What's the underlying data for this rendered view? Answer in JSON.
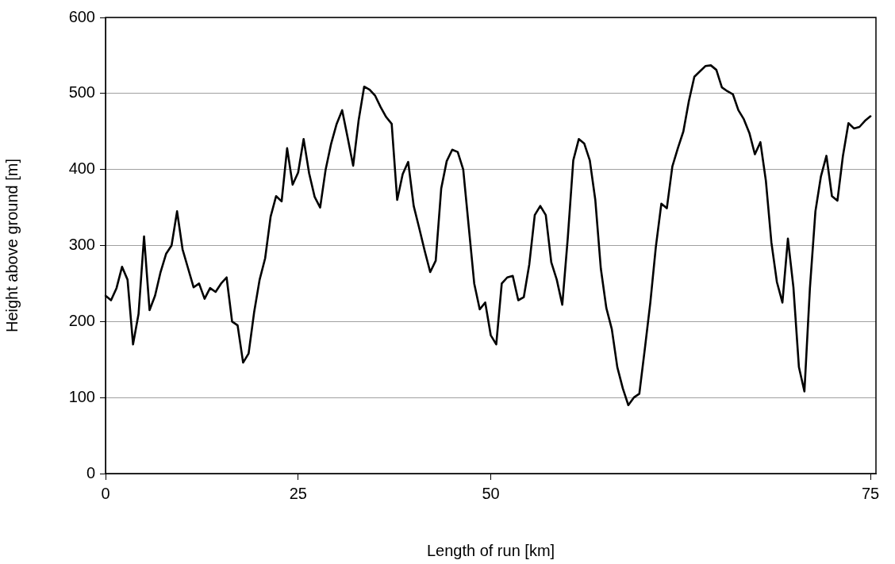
{
  "chart_data": {
    "type": "line",
    "xlabel": "Length of run [km]",
    "ylabel": "Height above ground [m]",
    "categories": [
      "0",
      null,
      null,
      null,
      null,
      null,
      null,
      null,
      null,
      null,
      null,
      null,
      null,
      null,
      null,
      null,
      null,
      null,
      null,
      null,
      null,
      null,
      null,
      null,
      null,
      null,
      null,
      null,
      null,
      null,
      null,
      null,
      null,
      null,
      null,
      "25",
      null,
      null,
      null,
      null,
      null,
      null,
      null,
      null,
      null,
      null,
      null,
      null,
      null,
      null,
      null,
      null,
      null,
      null,
      null,
      null,
      null,
      null,
      null,
      null,
      null,
      null,
      null,
      null,
      null,
      null,
      null,
      null,
      null,
      null,
      "50",
      null,
      null,
      null,
      null,
      null,
      null,
      null,
      null,
      null,
      null,
      null,
      null,
      null,
      null,
      null,
      null,
      null,
      null,
      null,
      null,
      null,
      null,
      null,
      null,
      null,
      null,
      null,
      null,
      null,
      null,
      null,
      null,
      null,
      null,
      null,
      null,
      null,
      null,
      null,
      null,
      null,
      null,
      null,
      null,
      null,
      null,
      null,
      null,
      null,
      null,
      null,
      null,
      null,
      null,
      null,
      null,
      null,
      null,
      null,
      null,
      null,
      null,
      null,
      null,
      null,
      null,
      null,
      null,
      "75",
      null
    ],
    "series": [
      {
        "color": "#000000",
        "values": [
          234,
          228,
          244,
          272,
          255,
          170,
          210,
          312,
          215,
          234,
          265,
          289,
          300,
          345,
          295,
          270,
          245,
          250,
          230,
          244,
          239,
          250,
          258,
          200,
          195,
          146,
          158,
          212,
          255,
          283,
          338,
          365,
          358,
          428,
          380,
          396,
          440,
          395,
          364,
          350,
          400,
          434,
          460,
          478,
          442,
          405,
          465,
          509,
          505,
          497,
          482,
          469,
          460,
          360,
          394,
          410,
          352,
          323,
          293,
          265,
          280,
          375,
          411,
          426,
          423,
          400,
          325,
          250,
          216,
          225,
          182,
          170,
          250,
          258,
          260,
          228,
          232,
          275,
          340,
          352,
          340,
          278,
          255,
          222,
          310,
          412,
          440,
          434,
          412,
          360,
          270,
          218,
          190,
          140,
          112,
          90,
          100,
          105,
          164,
          225,
          298,
          355,
          349,
          404,
          428,
          450,
          490,
          522,
          529,
          536,
          537,
          531,
          508,
          503,
          499,
          478,
          466,
          448,
          420,
          436,
          385,
          304,
          252,
          225,
          309,
          245,
          140,
          108,
          244,
          345,
          391,
          418,
          365,
          359,
          418,
          461,
          454,
          456,
          464,
          470,
          null
        ]
      }
    ],
    "ylim": [
      0,
      600
    ],
    "yticks": [
      0,
      100,
      200,
      300,
      400,
      500,
      600
    ],
    "grid": "y",
    "line_style": "solid",
    "marker": "none"
  }
}
